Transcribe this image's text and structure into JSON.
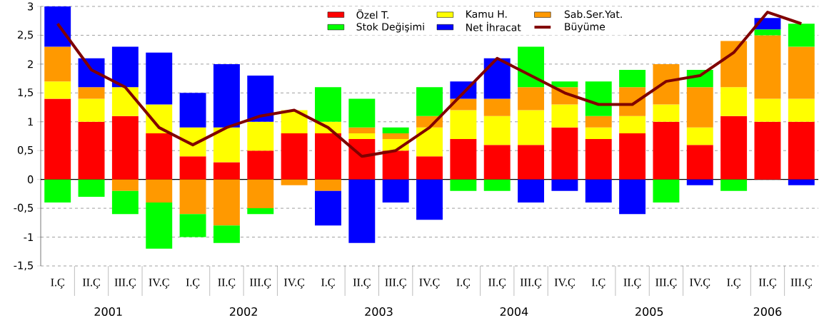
{
  "chart_data": {
    "type": "bar",
    "stacked": true,
    "categories": [
      "I.Ç",
      "II.Ç",
      "III.Ç",
      "IV.Ç",
      "I.Ç",
      "II.Ç",
      "III.Ç",
      "IV.Ç",
      "I.Ç",
      "II.Ç",
      "III.Ç",
      "IV.Ç",
      "I.Ç",
      "II.Ç",
      "III.Ç",
      "IV.Ç",
      "I.Ç",
      "II.Ç",
      "III.Ç",
      "IV.Ç",
      "I.Ç",
      "II.Ç",
      "III.Ç"
    ],
    "series": [
      {
        "name": "Özel T.",
        "color": "#ff0000",
        "values": [
          1.4,
          1.0,
          1.1,
          0.8,
          0.4,
          0.3,
          0.5,
          0.8,
          0.8,
          0.7,
          0.5,
          0.4,
          0.7,
          0.6,
          0.6,
          0.9,
          0.7,
          0.8,
          1.0,
          0.6,
          1.1,
          1.0,
          1.0
        ]
      },
      {
        "name": "Kamu H.",
        "color": "#ffff00",
        "values": [
          0.3,
          0.4,
          0.5,
          0.5,
          0.5,
          0.6,
          0.5,
          0.4,
          0.2,
          0.1,
          0.2,
          0.5,
          0.5,
          0.5,
          0.6,
          0.4,
          0.2,
          0.3,
          0.3,
          0.3,
          0.5,
          0.4,
          0.4
        ]
      },
      {
        "name": "Sab.Ser.Yat.",
        "color": "#ff9900",
        "values": [
          0.6,
          0.2,
          -0.2,
          -0.4,
          -0.6,
          -0.8,
          -0.5,
          -0.1,
          -0.2,
          0.1,
          0.1,
          0.2,
          0.2,
          0.3,
          0.4,
          0.3,
          0.2,
          0.5,
          0.7,
          0.7,
          0.8,
          1.1,
          0.9
        ]
      },
      {
        "name": "Stok Değişimi",
        "color": "#00ff00",
        "values": [
          -0.4,
          -0.3,
          -0.4,
          -0.8,
          -0.4,
          -0.3,
          -0.1,
          0,
          0.6,
          0.5,
          0.1,
          0.5,
          -0.2,
          -0.2,
          0.7,
          0.1,
          0.6,
          0.3,
          -0.4,
          0.3,
          -0.2,
          0.1,
          0.4
        ]
      },
      {
        "name": "Net İhracat",
        "color": "#0000ff",
        "values": [
          0.7,
          0.5,
          0.7,
          0.9,
          0.6,
          1.1,
          0.8,
          0,
          -0.6,
          -1.1,
          -0.4,
          -0.7,
          0.3,
          0.7,
          -0.4,
          -0.2,
          -0.4,
          -0.6,
          0,
          -0.1,
          0,
          0.2,
          -0.1
        ]
      },
      {
        "name": "Büyüme",
        "type": "line",
        "color": "#800000",
        "values": [
          2.7,
          1.9,
          1.6,
          0.9,
          0.6,
          0.9,
          1.1,
          1.2,
          0.9,
          0.4,
          0.5,
          0.9,
          1.5,
          2.1,
          1.8,
          1.5,
          1.3,
          1.3,
          1.7,
          1.8,
          2.2,
          2.9,
          2.7
        ]
      }
    ],
    "ylim": [
      -1.5,
      3
    ],
    "yticks": [
      {
        "value": -1.5,
        "label": "-1,5"
      },
      -1,
      {
        "value": -0.5,
        "label": "-0,5"
      },
      0,
      {
        "value": 0.5,
        "label": "0,5"
      },
      1,
      {
        "value": 1.5,
        "label": "1,5"
      },
      2,
      {
        "value": 2.5,
        "label": "2,5"
      },
      3
    ],
    "grid": "y",
    "legend": "top",
    "annotations": [
      "2001",
      "2002",
      "2003",
      "2004",
      "2005",
      "2006"
    ]
  }
}
